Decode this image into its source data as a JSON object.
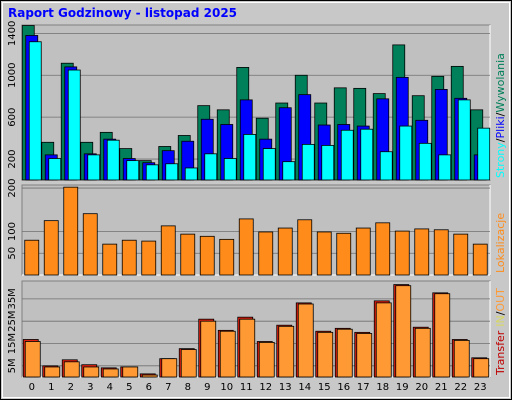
{
  "title": "Raport Godzinowy -  listopad 2025",
  "legend_separator": "/",
  "chart_data": [
    {
      "type": "bar",
      "layout": "overlap",
      "grid": true,
      "categories": [
        "0",
        "1",
        "2",
        "3",
        "4",
        "5",
        "6",
        "7",
        "8",
        "9",
        "10",
        "11",
        "12",
        "13",
        "14",
        "15",
        "16",
        "17",
        "18",
        "19",
        "20",
        "21",
        "22",
        "23"
      ],
      "ylim": [
        0,
        1480
      ],
      "yticks": [
        200,
        600,
        1000,
        1400
      ],
      "series": [
        {
          "name": "Wywolania",
          "color": "#00805a",
          "values": [
            1475,
            360,
            1115,
            360,
            455,
            300,
            185,
            320,
            425,
            710,
            670,
            1075,
            590,
            735,
            1000,
            735,
            880,
            875,
            825,
            1290,
            805,
            990,
            1085,
            670
          ]
        },
        {
          "name": "Pliki",
          "color": "#0000ff",
          "values": [
            1380,
            240,
            1080,
            250,
            390,
            205,
            165,
            280,
            370,
            580,
            530,
            765,
            390,
            690,
            815,
            525,
            530,
            515,
            775,
            980,
            570,
            865,
            780,
            240
          ]
        },
        {
          "name": "Strony",
          "color": "#00ffff",
          "values": [
            1320,
            205,
            1050,
            240,
            380,
            185,
            145,
            155,
            115,
            250,
            205,
            435,
            300,
            175,
            340,
            330,
            475,
            485,
            270,
            515,
            350,
            240,
            765,
            495
          ]
        }
      ]
    },
    {
      "type": "bar",
      "layout": "overlap",
      "grid": true,
      "ylim": [
        0,
        207
      ],
      "yticks": [
        50,
        100,
        200
      ],
      "series": [
        {
          "name": "Lokalizacje",
          "color": "#ff8c1a",
          "values": [
            80,
            125,
            202,
            141,
            71,
            80,
            78,
            113,
            94,
            89,
            82,
            129,
            99,
            108,
            127,
            99,
            96,
            108,
            120,
            101,
            106,
            104,
            94,
            71
          ]
        }
      ]
    },
    {
      "type": "bar",
      "layout": "overlap",
      "grid": true,
      "y_label": "Transfer",
      "ylim": [
        0,
        43000000
      ],
      "yticks": [
        {
          "value": 5000000,
          "label": "5M"
        },
        {
          "value": 15000000,
          "label": "15M"
        },
        {
          "value": 25000000,
          "label": "25M"
        },
        {
          "value": 35000000,
          "label": "35M"
        }
      ],
      "series": [
        {
          "name": "IN",
          "color": "#e02010",
          "values": [
            16800000,
            5000000,
            7700000,
            5500000,
            4100000,
            4500000,
            1400000,
            8200000,
            12700000,
            25900000,
            20900000,
            26800000,
            15900000,
            23200000,
            33200000,
            20500000,
            21800000,
            20000000,
            34100000,
            41400000,
            22300000,
            37700000,
            16800000,
            8600000
          ]
        },
        {
          "name": "OUT",
          "color": "#ff9933",
          "values": [
            15900000,
            4500000,
            6800000,
            4500000,
            3600000,
            4500000,
            900000,
            8200000,
            12300000,
            25000000,
            20500000,
            25900000,
            15500000,
            22700000,
            32700000,
            20000000,
            21400000,
            19500000,
            33200000,
            40900000,
            21800000,
            37300000,
            16400000,
            8200000
          ]
        }
      ]
    }
  ]
}
